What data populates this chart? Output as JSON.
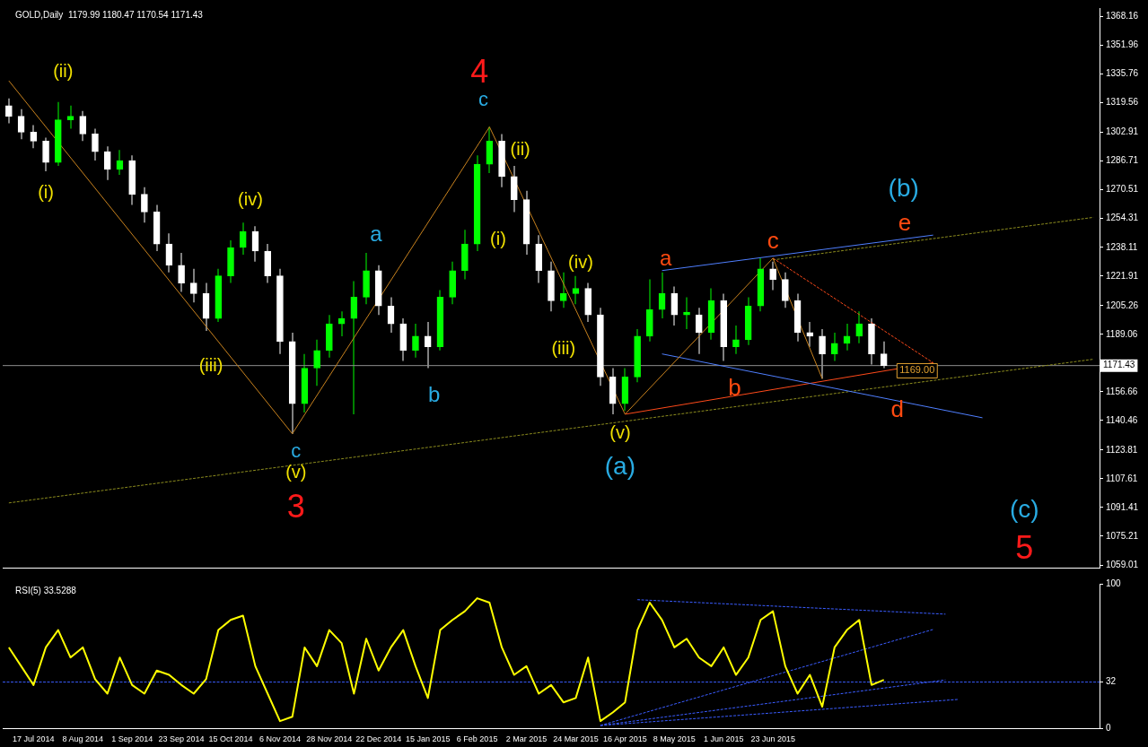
{
  "chart_data": [
    {
      "type": "candlestick",
      "title": "GOLD,Daily  1179.99 1180.47 1170.54 1171.43",
      "categories": [
        null,
        null,
        null,
        null,
        null,
        null,
        null,
        null,
        null,
        null,
        null,
        null,
        null,
        null,
        null,
        null,
        null,
        null,
        null,
        null,
        null,
        null,
        null,
        null,
        null,
        null,
        null,
        null,
        null,
        null,
        null,
        null,
        null,
        null,
        null,
        null,
        null,
        null,
        null,
        null,
        null,
        null,
        null,
        null,
        null,
        null,
        null,
        null,
        null,
        null,
        null,
        null,
        null,
        null,
        null,
        null,
        null,
        null,
        null,
        null,
        null,
        null,
        null,
        null,
        null,
        null,
        null,
        null,
        null,
        null,
        null,
        null,
        null,
        null,
        null,
        null,
        null,
        null,
        null,
        null,
        null,
        null,
        null,
        null,
        null,
        null,
        null,
        null,
        null
      ],
      "ohlc": [
        [
          1318,
          1322,
          1308,
          1312
        ],
        [
          1312,
          1316,
          1299,
          1303
        ],
        [
          1303,
          1307,
          1294,
          1298
        ],
        [
          1298,
          1300,
          1281,
          1286
        ],
        [
          1286,
          1320,
          1284,
          1310
        ],
        [
          1310,
          1318,
          1305,
          1312
        ],
        [
          1312,
          1315,
          1298,
          1302
        ],
        [
          1302,
          1305,
          1287,
          1292
        ],
        [
          1292,
          1295,
          1276,
          1282
        ],
        [
          1282,
          1293,
          1279,
          1287
        ],
        [
          1287,
          1290,
          1262,
          1268
        ],
        [
          1268,
          1272,
          1252,
          1258
        ],
        [
          1258,
          1262,
          1236,
          1240
        ],
        [
          1240,
          1246,
          1224,
          1228
        ],
        [
          1228,
          1235,
          1213,
          1218
        ],
        [
          1218,
          1226,
          1207,
          1212
        ],
        [
          1212,
          1218,
          1191,
          1198
        ],
        [
          1198,
          1226,
          1196,
          1222
        ],
        [
          1222,
          1242,
          1218,
          1238
        ],
        [
          1238,
          1252,
          1234,
          1247
        ],
        [
          1247,
          1250,
          1230,
          1236
        ],
        [
          1236,
          1240,
          1218,
          1222
        ],
        [
          1222,
          1226,
          1178,
          1185
        ],
        [
          1185,
          1190,
          1133,
          1150
        ],
        [
          1150,
          1178,
          1145,
          1170
        ],
        [
          1170,
          1186,
          1160,
          1180
        ],
        [
          1180,
          1200,
          1176,
          1195
        ],
        [
          1195,
          1202,
          1188,
          1198
        ],
        [
          1198,
          1219,
          1144,
          1210
        ],
        [
          1210,
          1235,
          1206,
          1225
        ],
        [
          1225,
          1228,
          1200,
          1205
        ],
        [
          1205,
          1210,
          1190,
          1195
        ],
        [
          1195,
          1198,
          1174,
          1180
        ],
        [
          1180,
          1195,
          1176,
          1188
        ],
        [
          1188,
          1196,
          1170,
          1182
        ],
        [
          1182,
          1214,
          1180,
          1210
        ],
        [
          1210,
          1230,
          1206,
          1225
        ],
        [
          1225,
          1248,
          1220,
          1240
        ],
        [
          1240,
          1290,
          1236,
          1285
        ],
        [
          1285,
          1306,
          1280,
          1298
        ],
        [
          1298,
          1302,
          1272,
          1278
        ],
        [
          1278,
          1284,
          1258,
          1265
        ],
        [
          1265,
          1270,
          1234,
          1240
        ],
        [
          1240,
          1245,
          1218,
          1225
        ],
        [
          1225,
          1230,
          1202,
          1208
        ],
        [
          1208,
          1224,
          1204,
          1212
        ],
        [
          1212,
          1222,
          1206,
          1215
        ],
        [
          1215,
          1218,
          1196,
          1200
        ],
        [
          1200,
          1204,
          1160,
          1165
        ],
        [
          1165,
          1170,
          1144,
          1150
        ],
        [
          1150,
          1170,
          1146,
          1165
        ],
        [
          1165,
          1192,
          1162,
          1188
        ],
        [
          1188,
          1220,
          1185,
          1203
        ],
        [
          1203,
          1224,
          1198,
          1212
        ],
        [
          1212,
          1216,
          1194,
          1200
        ],
        [
          1200,
          1210,
          1192,
          1200
        ],
        [
          1200,
          1204,
          1178,
          1190
        ],
        [
          1190,
          1215,
          1186,
          1208
        ],
        [
          1208,
          1212,
          1174,
          1182
        ],
        [
          1182,
          1194,
          1178,
          1186
        ],
        [
          1186,
          1210,
          1183,
          1205
        ],
        [
          1205,
          1232,
          1202,
          1226
        ],
        [
          1226,
          1230,
          1214,
          1220
        ],
        [
          1220,
          1224,
          1204,
          1208
        ],
        [
          1208,
          1212,
          1185,
          1190
        ],
        [
          1190,
          1196,
          1182,
          1188
        ],
        [
          1188,
          1192,
          1164,
          1178
        ],
        [
          1178,
          1190,
          1174,
          1184
        ],
        [
          1184,
          1195,
          1180,
          1188
        ],
        [
          1188,
          1202,
          1184,
          1195
        ],
        [
          1195,
          1198,
          1172,
          1178
        ],
        [
          1178,
          1185,
          1170,
          1171.43
        ],
        null,
        null,
        null,
        null,
        null,
        null,
        null,
        null,
        null,
        null,
        null,
        null,
        null,
        null,
        null,
        null,
        null
      ],
      "colors": [
        "#ffffff",
        "#ffffff",
        "#ffffff",
        "#ffffff",
        "#00ff00",
        "#00ff00",
        "#ffffff",
        "#ffffff",
        "#ffffff",
        "#00ff00",
        "#ffffff",
        "#ffffff",
        "#ffffff",
        "#ffffff",
        "#ffffff",
        "#ffffff",
        "#ffffff",
        "#00ff00",
        "#00ff00",
        "#00ff00",
        "#ffffff",
        "#ffffff",
        "#ffffff",
        "#ffffff",
        "#00ff00",
        "#00ff00",
        "#00ff00",
        "#00ff00",
        "#00ff00",
        "#00ff00",
        "#ffffff",
        "#ffffff",
        "#ffffff",
        "#00ff00",
        "#ffffff",
        "#00ff00",
        "#00ff00",
        "#00ff00",
        "#00ff00",
        "#00ff00",
        "#ffffff",
        "#ffffff",
        "#ffffff",
        "#ffffff",
        "#ffffff",
        "#00ff00",
        "#00ff00",
        "#ffffff",
        "#ffffff",
        "#ffffff",
        "#00ff00",
        "#00ff00",
        "#00ff00",
        "#00ff00",
        "#ffffff",
        "#00ff00",
        "#ffffff",
        "#00ff00",
        "#ffffff",
        "#00ff00",
        "#00ff00",
        "#00ff00",
        "#ffffff",
        "#ffffff",
        "#ffffff",
        "#ffffff",
        "#ffffff",
        "#00ff00",
        "#00ff00",
        "#00ff00",
        "#ffffff",
        "#ffffff",
        null,
        null,
        null,
        null,
        null,
        null,
        null,
        null,
        null,
        null,
        null,
        null,
        null,
        null,
        null,
        null,
        null
      ],
      "series": [
        {
          "type": "line",
          "color": "#c8821e",
          "values": [
            1332,
            null,
            null,
            null,
            null,
            null,
            null,
            null,
            null,
            null,
            null,
            null,
            null,
            null,
            null,
            null,
            null,
            null,
            null,
            null,
            null,
            null,
            null,
            1133,
            null,
            null,
            null,
            null,
            null,
            null,
            null,
            null,
            null,
            null,
            null,
            null,
            null,
            null,
            null,
            1306,
            null,
            null,
            null,
            null,
            null,
            null,
            null,
            null,
            null,
            null,
            1144,
            null,
            null,
            null,
            null,
            null,
            null,
            null,
            null,
            null,
            null,
            null,
            1232,
            null,
            null,
            null,
            1164,
            null,
            null,
            null,
            null,
            null,
            null,
            null,
            null,
            null,
            null,
            null,
            null,
            null,
            null,
            null,
            null,
            null,
            null,
            null,
            null,
            null,
            null
          ]
        },
        {
          "type": "line",
          "color": "#4f7fff",
          "values": [
            null,
            null,
            null,
            null,
            null,
            null,
            null,
            null,
            null,
            null,
            null,
            null,
            null,
            null,
            null,
            null,
            null,
            null,
            null,
            null,
            null,
            null,
            null,
            null,
            null,
            null,
            null,
            null,
            null,
            null,
            null,
            null,
            null,
            null,
            null,
            null,
            null,
            null,
            null,
            null,
            null,
            null,
            null,
            null,
            null,
            null,
            null,
            null,
            null,
            null,
            null,
            null,
            null,
            1225,
            null,
            null,
            null,
            null,
            null,
            null,
            null,
            null,
            null,
            null,
            null,
            null,
            null,
            null,
            null,
            null,
            null,
            null,
            null,
            null,
            null,
            1245,
            null,
            null,
            null,
            null,
            null,
            null,
            null,
            null,
            null,
            null,
            null,
            null,
            null
          ]
        },
        {
          "type": "line",
          "color": "#4f7fff",
          "values": [
            null,
            null,
            null,
            null,
            null,
            null,
            null,
            null,
            null,
            null,
            null,
            null,
            null,
            null,
            null,
            null,
            null,
            null,
            null,
            null,
            null,
            null,
            null,
            null,
            null,
            null,
            null,
            null,
            null,
            null,
            null,
            null,
            null,
            null,
            null,
            null,
            null,
            null,
            null,
            null,
            null,
            null,
            null,
            null,
            null,
            null,
            null,
            null,
            null,
            null,
            null,
            null,
            null,
            1178,
            null,
            null,
            null,
            null,
            null,
            null,
            null,
            null,
            null,
            null,
            null,
            null,
            null,
            null,
            null,
            null,
            null,
            null,
            null,
            null,
            null,
            null,
            null,
            null,
            null,
            1142,
            null,
            null,
            null,
            null,
            null,
            null,
            null,
            null,
            null
          ]
        },
        {
          "type": "line",
          "color": "#ff4a1a",
          "values": [
            null,
            null,
            null,
            null,
            null,
            null,
            null,
            null,
            null,
            null,
            null,
            null,
            null,
            null,
            null,
            null,
            null,
            null,
            null,
            null,
            null,
            null,
            null,
            null,
            null,
            null,
            null,
            null,
            null,
            null,
            null,
            null,
            null,
            null,
            null,
            null,
            null,
            null,
            null,
            null,
            null,
            null,
            null,
            null,
            null,
            null,
            null,
            null,
            null,
            null,
            1144,
            null,
            null,
            null,
            null,
            null,
            null,
            null,
            null,
            null,
            null,
            null,
            null,
            null,
            null,
            null,
            null,
            null,
            null,
            null,
            null,
            null,
            null,
            null,
            null,
            1173,
            null,
            null,
            null,
            null,
            null,
            null,
            null,
            null,
            null,
            null,
            null,
            null,
            null
          ]
        },
        {
          "type": "line",
          "color": "#ff4a1a",
          "line_style": "dashed",
          "values": [
            null,
            null,
            null,
            null,
            null,
            null,
            null,
            null,
            null,
            null,
            null,
            null,
            null,
            null,
            null,
            null,
            null,
            null,
            null,
            null,
            null,
            null,
            null,
            null,
            null,
            null,
            null,
            null,
            null,
            null,
            null,
            null,
            null,
            null,
            null,
            null,
            null,
            null,
            null,
            null,
            null,
            null,
            null,
            null,
            null,
            null,
            null,
            null,
            null,
            null,
            null,
            null,
            null,
            null,
            null,
            null,
            null,
            null,
            null,
            null,
            null,
            null,
            1232,
            null,
            null,
            null,
            null,
            null,
            null,
            null,
            null,
            null,
            null,
            null,
            null,
            1173,
            null,
            null,
            null,
            null,
            null,
            null,
            null,
            null,
            null,
            null,
            null,
            null,
            null
          ]
        },
        {
          "type": "line",
          "color": "#8c8c1e",
          "line_style": "dashed",
          "values": [
            1094,
            null,
            null,
            null,
            null,
            null,
            null,
            null,
            null,
            null,
            null,
            null,
            null,
            null,
            null,
            null,
            null,
            null,
            null,
            null,
            null,
            null,
            null,
            null,
            null,
            null,
            null,
            null,
            null,
            null,
            null,
            null,
            null,
            null,
            null,
            null,
            null,
            null,
            null,
            null,
            null,
            null,
            null,
            null,
            null,
            null,
            null,
            null,
            null,
            null,
            null,
            null,
            null,
            null,
            null,
            null,
            null,
            null,
            null,
            null,
            null,
            null,
            null,
            null,
            null,
            null,
            null,
            null,
            null,
            null,
            null,
            null,
            null,
            null,
            null,
            null,
            null,
            null,
            null,
            null,
            null,
            null,
            null,
            null,
            null,
            null,
            null,
            null,
            1175
          ]
        },
        {
          "type": "line",
          "color": "#8c8c1e",
          "line_style": "dashed",
          "values": [
            null,
            null,
            null,
            null,
            null,
            null,
            null,
            null,
            null,
            null,
            null,
            null,
            null,
            null,
            null,
            null,
            null,
            null,
            null,
            null,
            null,
            null,
            null,
            null,
            null,
            null,
            null,
            null,
            null,
            null,
            null,
            null,
            null,
            null,
            null,
            null,
            null,
            null,
            null,
            null,
            null,
            null,
            null,
            null,
            null,
            null,
            null,
            null,
            null,
            null,
            null,
            null,
            null,
            null,
            null,
            null,
            null,
            null,
            null,
            null,
            null,
            null,
            1231,
            null,
            null,
            null,
            null,
            null,
            null,
            null,
            null,
            null,
            null,
            null,
            null,
            null,
            null,
            null,
            null,
            null,
            null,
            null,
            null,
            null,
            null,
            null,
            null,
            null,
            1255
          ]
        }
      ],
      "ylim": [
        1057.5,
        1373
      ],
      "yticks": [
        1059.01,
        1075.21,
        1091.41,
        1107.61,
        1123.81,
        1140.46,
        1156.66,
        1189.06,
        1205.26,
        1221.91,
        1238.11,
        1254.31,
        1270.51,
        1286.71,
        1302.91,
        1319.56,
        1335.76,
        1351.96,
        1368.16
      ],
      "tick_labels": "y",
      "ref_lines": [
        {
          "axis": "y",
          "value": 1171.43,
          "label": "1171.43",
          "color": "#8c8c8c"
        }
      ],
      "annotations": [
        "(ii)",
        "(i)",
        "(iv)",
        "(iii)",
        "c",
        "(v)",
        "3",
        "a",
        "b",
        "4",
        "c",
        "(ii)",
        "(i)",
        "(iv)",
        "(iii)",
        "(v)",
        "(a)",
        "a",
        "b",
        "c",
        "d",
        "e",
        "(b)",
        "(c)",
        "5",
        "1169.00"
      ]
    },
    {
      "type": "line",
      "title": "RSI(5) 33.5288",
      "categories": [
        null,
        null,
        "17 Jul 2014",
        null,
        null,
        null,
        "8 Aug 2014",
        null,
        null,
        null,
        "1 Sep 2014",
        null,
        null,
        null,
        "23 Sep 2014",
        null,
        null,
        null,
        "15 Oct 2014",
        null,
        null,
        null,
        "6 Nov 2014",
        null,
        null,
        null,
        "28 Nov 2014",
        null,
        null,
        null,
        "22 Dec 2014",
        null,
        null,
        null,
        "15 Jan 2015",
        null,
        null,
        null,
        "6 Feb 2015",
        null,
        null,
        null,
        "2 Mar 2015",
        null,
        null,
        null,
        "24 Mar 2015",
        null,
        null,
        null,
        "16 Apr 2015",
        null,
        null,
        null,
        "8 May 2015",
        null,
        null,
        null,
        "1 Jun 2015",
        null,
        null,
        null,
        "23 Jun 2015",
        null,
        null,
        null,
        null,
        null,
        null,
        null,
        null,
        null,
        null,
        null,
        null,
        null,
        null,
        null,
        null,
        null,
        null,
        null,
        null,
        null,
        null,
        null,
        null,
        null,
        null
      ],
      "series": [
        {
          "color": "#ffff00",
          "values": [
            56,
            43,
            30,
            56,
            68,
            49,
            56,
            34,
            24,
            49,
            30,
            24,
            40,
            37,
            30,
            24,
            34,
            68,
            75,
            78,
            43,
            24,
            5,
            8,
            56,
            43,
            68,
            59,
            24,
            62,
            40,
            56,
            68,
            43,
            21,
            68,
            75,
            81,
            90,
            87,
            56,
            37,
            43,
            24,
            30,
            18,
            21,
            49,
            5,
            11,
            18,
            68,
            87,
            75,
            56,
            62,
            49,
            43,
            56,
            37,
            49,
            75,
            81,
            43,
            24,
            37,
            15,
            56,
            68,
            75,
            30,
            33.5,
            null,
            null,
            null,
            null,
            null,
            null,
            null,
            null,
            null,
            null,
            null,
            null,
            null,
            null,
            null,
            null,
            null
          ]
        },
        {
          "color": "#3a5cff",
          "line_style": "dashed",
          "values": [
            null,
            null,
            null,
            null,
            null,
            null,
            null,
            null,
            null,
            null,
            null,
            null,
            null,
            null,
            null,
            null,
            null,
            null,
            null,
            null,
            null,
            null,
            null,
            null,
            null,
            null,
            null,
            null,
            null,
            null,
            null,
            null,
            null,
            null,
            null,
            null,
            null,
            null,
            null,
            null,
            null,
            null,
            null,
            null,
            null,
            null,
            null,
            null,
            null,
            null,
            null,
            89,
            null,
            null,
            null,
            null,
            null,
            null,
            null,
            null,
            null,
            null,
            null,
            null,
            null,
            null,
            null,
            null,
            null,
            null,
            null,
            null,
            null,
            null,
            null,
            null,
            79,
            null,
            null,
            null,
            null,
            null,
            null,
            null,
            null,
            null,
            null,
            null,
            null
          ]
        },
        {
          "color": "#3a5cff",
          "line_style": "dashed",
          "values": [
            null,
            null,
            null,
            null,
            null,
            null,
            null,
            null,
            null,
            null,
            null,
            null,
            null,
            null,
            null,
            null,
            null,
            null,
            null,
            null,
            null,
            null,
            null,
            null,
            null,
            null,
            null,
            null,
            null,
            null,
            null,
            null,
            null,
            null,
            null,
            null,
            null,
            null,
            null,
            null,
            null,
            null,
            null,
            null,
            null,
            null,
            null,
            null,
            2,
            null,
            null,
            null,
            null,
            null,
            null,
            null,
            null,
            null,
            null,
            null,
            null,
            null,
            null,
            null,
            null,
            null,
            null,
            null,
            null,
            null,
            null,
            null,
            null,
            null,
            null,
            null,
            null,
            20,
            null,
            null,
            null,
            null,
            null,
            null,
            null,
            null,
            null,
            null,
            null
          ]
        },
        {
          "color": "#3a5cff",
          "line_style": "dashed",
          "values": [
            null,
            null,
            null,
            null,
            null,
            null,
            null,
            null,
            null,
            null,
            null,
            null,
            null,
            null,
            null,
            null,
            null,
            null,
            null,
            null,
            null,
            null,
            null,
            null,
            null,
            null,
            null,
            null,
            null,
            null,
            null,
            null,
            null,
            null,
            null,
            null,
            null,
            null,
            null,
            null,
            null,
            null,
            null,
            null,
            null,
            null,
            null,
            null,
            2,
            null,
            null,
            null,
            null,
            null,
            null,
            null,
            null,
            null,
            null,
            null,
            null,
            null,
            null,
            null,
            null,
            null,
            null,
            null,
            null,
            null,
            null,
            null,
            null,
            null,
            null,
            null,
            33.5,
            null,
            null,
            null,
            null,
            null,
            null,
            null,
            null,
            null,
            null,
            null,
            null
          ]
        },
        {
          "color": "#3a5cff",
          "line_style": "dashed",
          "values": [
            null,
            null,
            null,
            null,
            null,
            null,
            null,
            null,
            null,
            null,
            null,
            null,
            null,
            null,
            null,
            null,
            null,
            null,
            null,
            null,
            null,
            null,
            null,
            null,
            null,
            null,
            null,
            null,
            null,
            null,
            null,
            null,
            null,
            null,
            null,
            null,
            null,
            null,
            null,
            null,
            null,
            null,
            null,
            null,
            null,
            null,
            null,
            null,
            2,
            null,
            null,
            null,
            null,
            null,
            null,
            null,
            null,
            null,
            null,
            null,
            null,
            null,
            null,
            null,
            null,
            null,
            null,
            null,
            null,
            null,
            null,
            null,
            null,
            null,
            null,
            68.4,
            null,
            null,
            null,
            null,
            null,
            null,
            null,
            null,
            null,
            null,
            null,
            null,
            null
          ]
        }
      ],
      "ylim": [
        0,
        100
      ],
      "yticks": [
        0,
        32,
        100
      ],
      "ref_lines": [
        {
          "axis": "y",
          "value": 32,
          "color": "#3a5cff",
          "line_style": "dashed"
        }
      ]
    }
  ]
}
